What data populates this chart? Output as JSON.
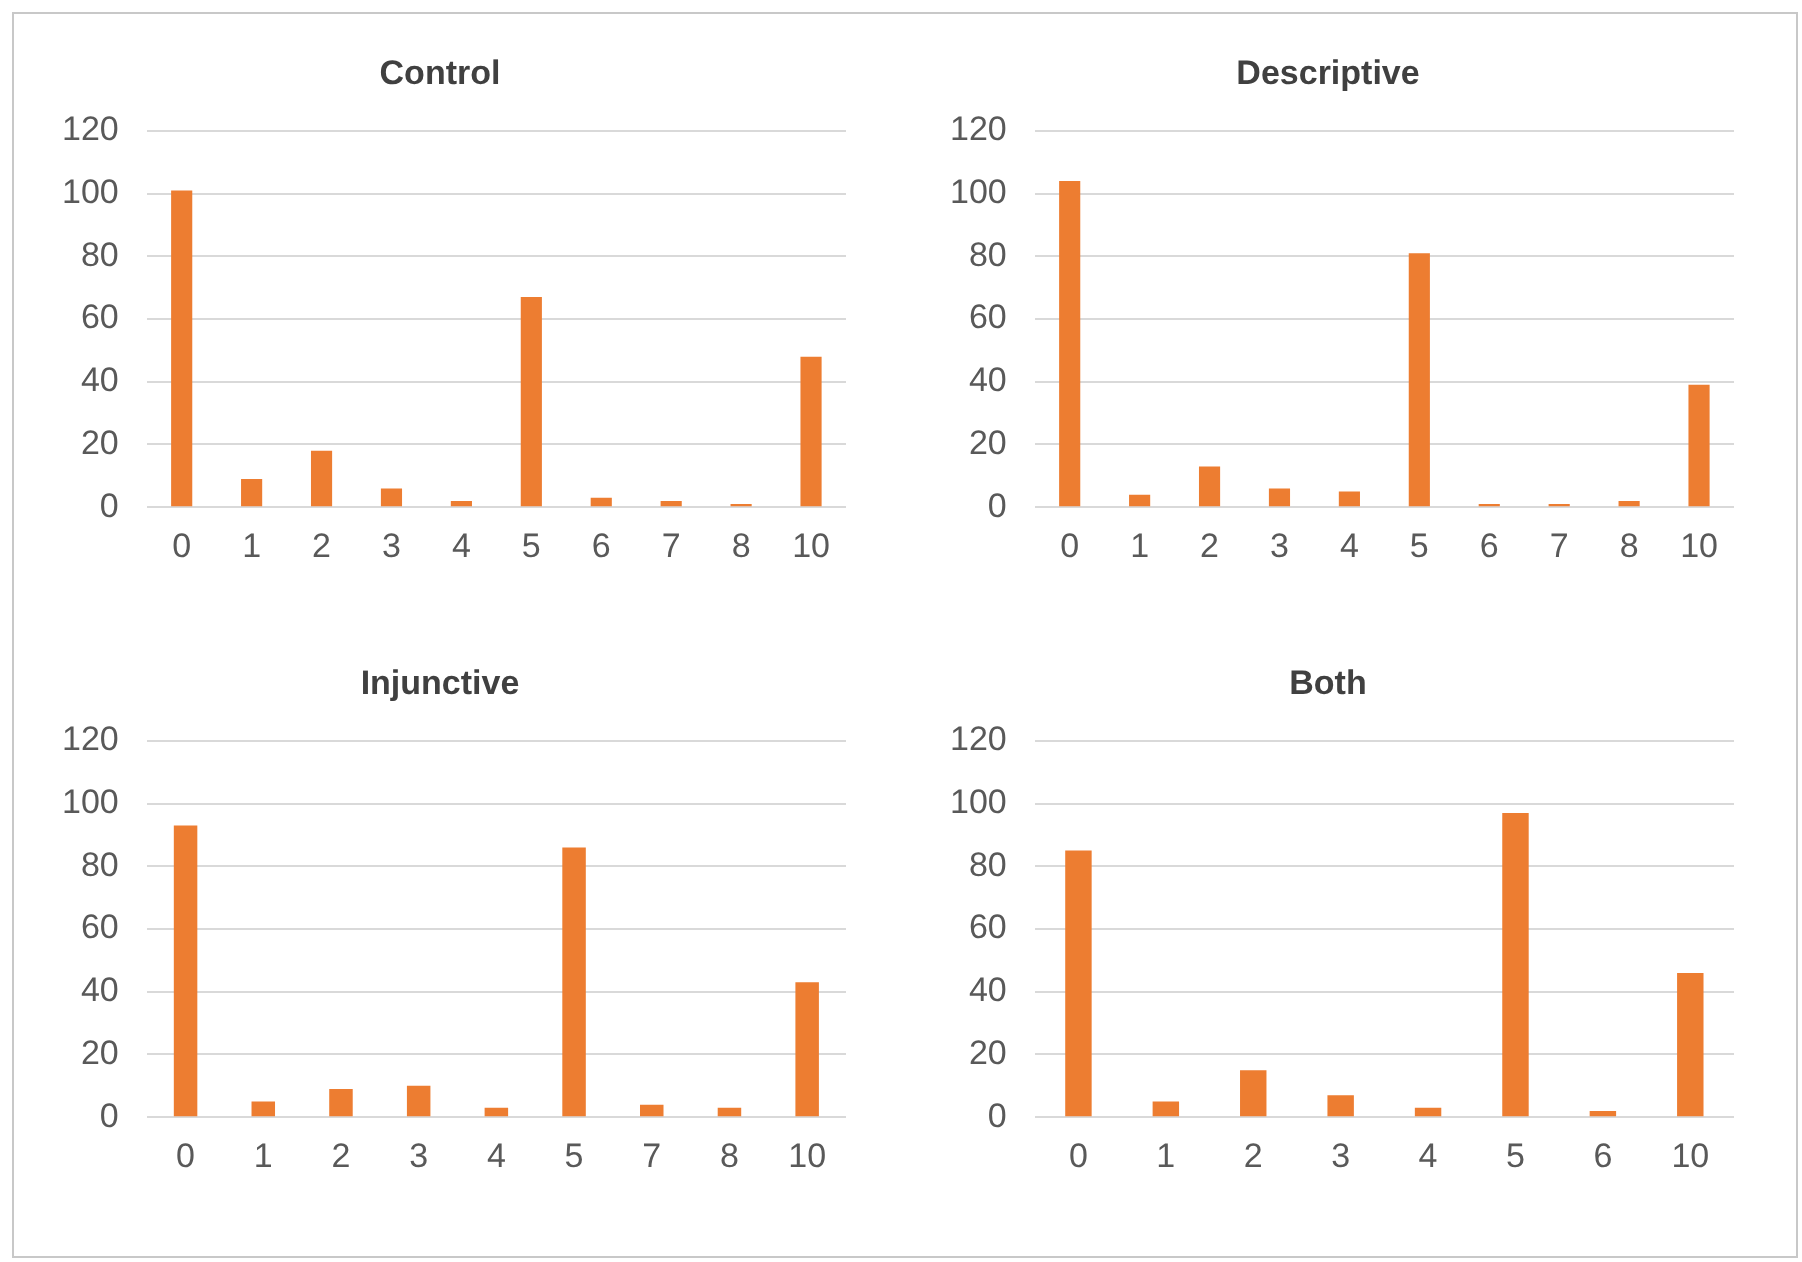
{
  "chart_data": [
    {
      "type": "bar",
      "title": "Control",
      "categories": [
        "0",
        "1",
        "2",
        "3",
        "4",
        "5",
        "6",
        "7",
        "8",
        "10"
      ],
      "values": [
        101,
        9,
        18,
        6,
        2,
        67,
        3,
        2,
        1,
        48
      ],
      "color": "#ed7d31",
      "ylim": [
        0,
        120
      ],
      "yticks": [
        0,
        20,
        40,
        60,
        80,
        100,
        120
      ],
      "grid": "y",
      "legend": false
    },
    {
      "type": "bar",
      "title": "Descriptive",
      "categories": [
        "0",
        "1",
        "2",
        "3",
        "4",
        "5",
        "6",
        "7",
        "8",
        "10"
      ],
      "values": [
        104,
        4,
        13,
        6,
        5,
        81,
        1,
        1,
        2,
        39
      ],
      "color": "#ed7d31",
      "ylim": [
        0,
        120
      ],
      "yticks": [
        0,
        20,
        40,
        60,
        80,
        100,
        120
      ],
      "grid": "y",
      "legend": false
    },
    {
      "type": "bar",
      "title": "Injunctive",
      "categories": [
        "0",
        "1",
        "2",
        "3",
        "4",
        "5",
        "7",
        "8",
        "10"
      ],
      "values": [
        93,
        5,
        9,
        10,
        3,
        86,
        4,
        3,
        43
      ],
      "color": "#ed7d31",
      "ylim": [
        0,
        120
      ],
      "yticks": [
        0,
        20,
        40,
        60,
        80,
        100,
        120
      ],
      "grid": "y",
      "legend": false
    },
    {
      "type": "bar",
      "title": "Both",
      "categories": [
        "0",
        "1",
        "2",
        "3",
        "4",
        "5",
        "6",
        "10"
      ],
      "values": [
        85,
        5,
        15,
        7,
        3,
        97,
        2,
        46
      ],
      "color": "#ed7d31",
      "ylim": [
        0,
        120
      ],
      "yticks": [
        0,
        20,
        40,
        60,
        80,
        100,
        120
      ],
      "grid": "y",
      "legend": false
    }
  ]
}
